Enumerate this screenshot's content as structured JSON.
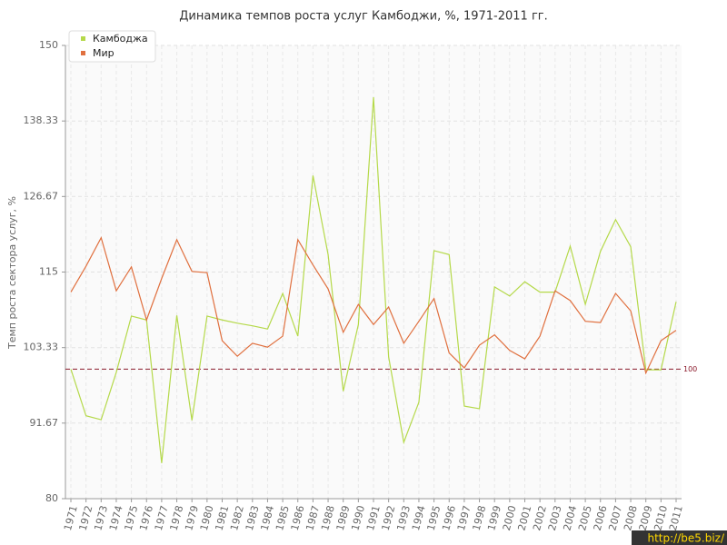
{
  "chart_data": {
    "type": "line",
    "title": "Динамика темпов роста услуг Камбоджи, %, 1971-2011 гг.",
    "y_label": "Темп роста сектора услуг, %",
    "categories": [
      "1971",
      "1972",
      "1973",
      "1974",
      "1975",
      "1976",
      "1977",
      "1978",
      "1979",
      "1980",
      "1981",
      "1982",
      "1983",
      "1984",
      "1985",
      "1986",
      "1987",
      "1988",
      "1989",
      "1990",
      "1991",
      "1992",
      "1993",
      "1994",
      "1995",
      "1996",
      "1997",
      "1998",
      "1999",
      "2000",
      "2001",
      "2002",
      "2003",
      "2004",
      "2005",
      "2006",
      "2007",
      "2008",
      "2009",
      "2010",
      "2011"
    ],
    "series": [
      {
        "name": "Камбоджа",
        "color": "#b5d94a",
        "values": [
          100,
          92.8,
          92.2,
          99.5,
          108.2,
          107.6,
          85.5,
          108.3,
          92.1,
          108.2,
          107.6,
          107.1,
          106.7,
          106.2,
          111.7,
          105.1,
          129.9,
          117.7,
          96.6,
          106.9,
          142,
          101.9,
          88.7,
          94.9,
          118.3,
          117.7,
          94.3,
          93.9,
          112.7,
          111.3,
          113.5,
          111.9,
          111.9,
          119,
          110,
          118.2,
          123.1,
          118.9,
          99.9,
          99.9,
          110.4
        ]
      },
      {
        "name": "Мир",
        "color": "#e0703f",
        "values": [
          111.9,
          115.9,
          120.3,
          112.1,
          115.8,
          107.6,
          114,
          120,
          115.1,
          114.9,
          104.4,
          102,
          104,
          103.4,
          105.1,
          120,
          116.1,
          112.4,
          105.7,
          110,
          106.9,
          109.6,
          104,
          107.4,
          110.9,
          102.5,
          100.2,
          103.7,
          105.3,
          102.9,
          101.6,
          105.1,
          112.1,
          110.6,
          107.4,
          107.2,
          111.7,
          109,
          99.4,
          104.4,
          106
        ]
      }
    ],
    "ylim": [
      80,
      150
    ],
    "yticks": [
      80,
      91.67,
      103.33,
      115,
      126.67,
      138.33,
      150
    ],
    "grid": true,
    "legend": "top-left",
    "reference_line": {
      "value": 100,
      "label": "100",
      "color": "#8b1a2b"
    },
    "watermark": "http://be5.biz/"
  }
}
